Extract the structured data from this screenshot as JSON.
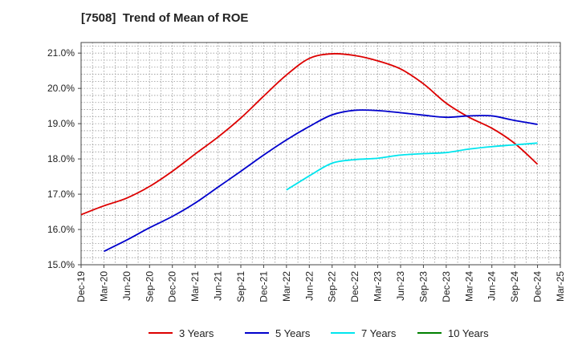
{
  "chart_data": {
    "type": "line",
    "title": "[7508]  Trend of Mean of ROE",
    "xlabel": "",
    "ylabel": "",
    "x_labels": [
      "Dec-19",
      "Mar-20",
      "Jun-20",
      "Sep-20",
      "Dec-20",
      "Mar-21",
      "Jun-21",
      "Sep-21",
      "Dec-21",
      "Mar-22",
      "Jun-22",
      "Sep-22",
      "Dec-22",
      "Mar-23",
      "Jun-23",
      "Sep-23",
      "Dec-23",
      "Mar-24",
      "Jun-24",
      "Sep-24",
      "Dec-24",
      "Mar-25"
    ],
    "y_ticks": [
      "15.0%",
      "16.0%",
      "17.0%",
      "18.0%",
      "19.0%",
      "20.0%",
      "21.0%"
    ],
    "ylim": [
      15.0,
      21.3
    ],
    "grid": true,
    "legend_position": "bottom",
    "series": [
      {
        "name": "3 Years",
        "color": "#dd0000",
        "values": [
          16.42,
          16.67,
          16.89,
          17.22,
          17.65,
          18.14,
          18.62,
          19.16,
          19.78,
          20.38,
          20.85,
          20.98,
          20.93,
          20.78,
          20.55,
          20.13,
          19.58,
          19.18,
          18.87,
          18.44,
          17.85,
          null
        ]
      },
      {
        "name": "5 Years",
        "color": "#0000cc",
        "values": [
          null,
          15.38,
          15.7,
          16.05,
          16.37,
          16.75,
          17.2,
          17.65,
          18.11,
          18.54,
          18.92,
          19.25,
          19.38,
          19.37,
          19.31,
          19.24,
          19.18,
          19.22,
          19.22,
          19.09,
          18.98,
          null
        ]
      },
      {
        "name": "7 Years",
        "color": "#00e5ee",
        "values": [
          null,
          null,
          null,
          null,
          null,
          null,
          null,
          null,
          null,
          17.12,
          17.52,
          17.88,
          17.98,
          18.02,
          18.11,
          18.15,
          18.18,
          18.28,
          18.35,
          18.4,
          18.45,
          null
        ]
      },
      {
        "name": "10 Years",
        "color": "#008000",
        "values": [
          null,
          null,
          null,
          null,
          null,
          null,
          null,
          null,
          null,
          null,
          null,
          null,
          null,
          null,
          null,
          null,
          null,
          null,
          null,
          null,
          null,
          null
        ]
      }
    ]
  }
}
